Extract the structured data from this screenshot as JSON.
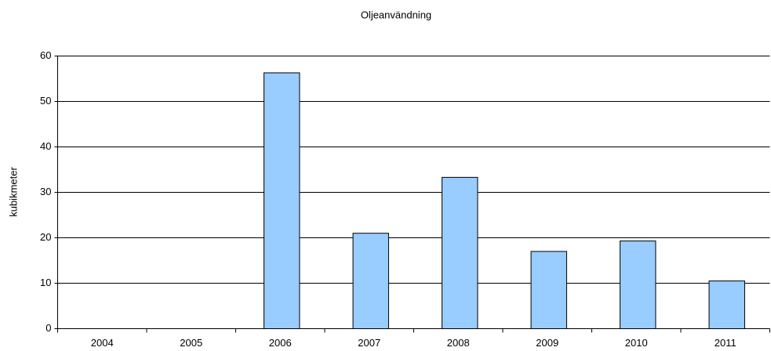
{
  "chart_data": {
    "type": "bar",
    "title": "Oljeanvändning",
    "y_label": "kubikmeter",
    "categories": [
      "2004",
      "2005",
      "2006",
      "2007",
      "2008",
      "2009",
      "2010",
      "2011"
    ],
    "values": [
      null,
      null,
      56.3,
      21,
      33.3,
      17,
      19.3,
      10.5
    ],
    "color": "#99ccff",
    "ylim": [
      0,
      60
    ],
    "yticks": [
      0,
      10,
      20,
      30,
      40,
      50,
      60
    ],
    "grid": true
  }
}
